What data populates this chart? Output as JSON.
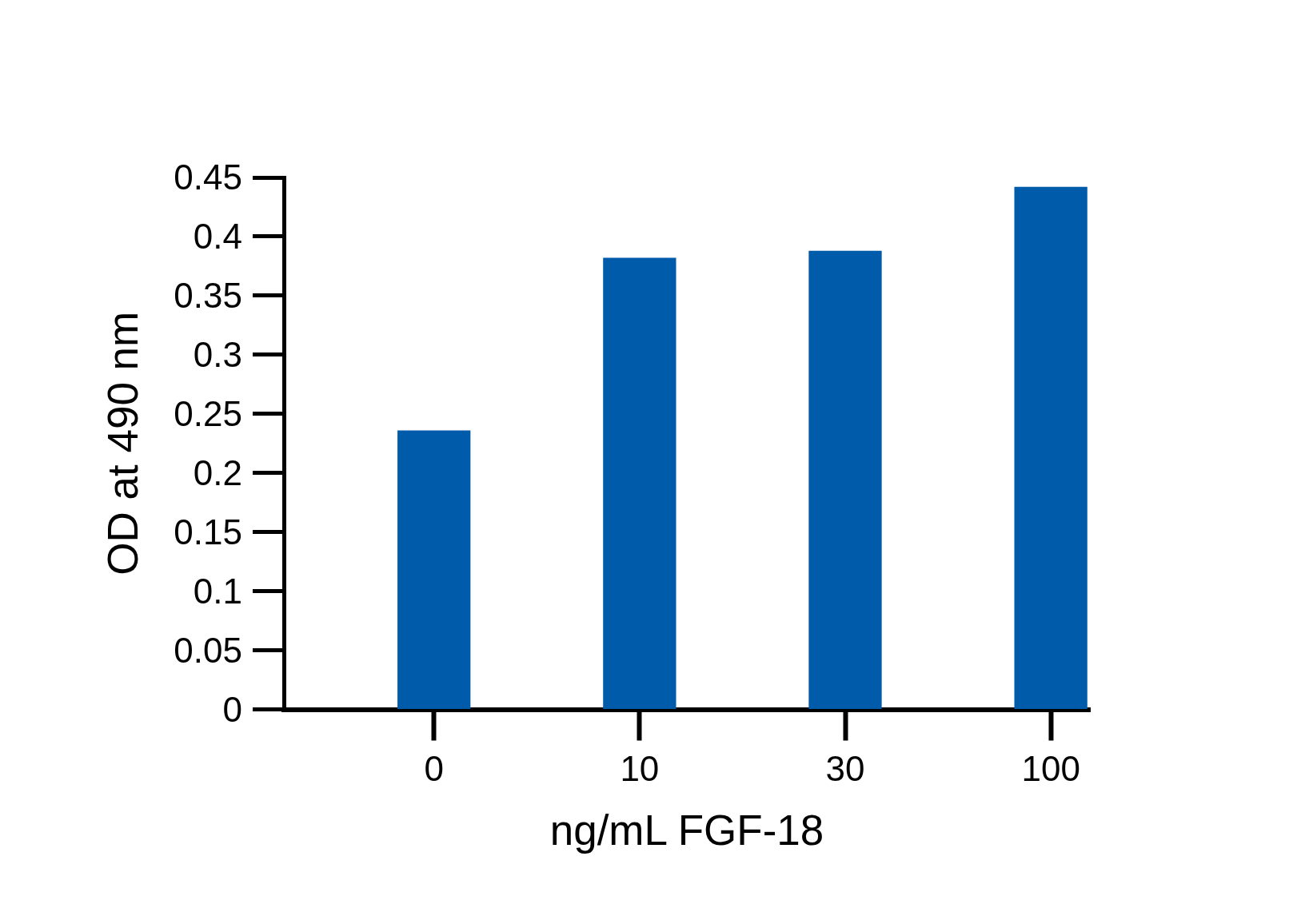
{
  "chart_data": {
    "type": "bar",
    "xlabel": "ng/mL FGF-18",
    "ylabel": "OD at 490 nm",
    "categories": [
      "0",
      "10",
      "30",
      "100"
    ],
    "values": [
      0.236,
      0.382,
      0.388,
      0.442
    ],
    "color": "#005baa",
    "ylim": [
      0,
      0.45
    ],
    "yticks": [
      0,
      0.05,
      0.1,
      0.15,
      0.2,
      0.25,
      0.3,
      0.35,
      0.4,
      0.45
    ],
    "grid": false
  }
}
